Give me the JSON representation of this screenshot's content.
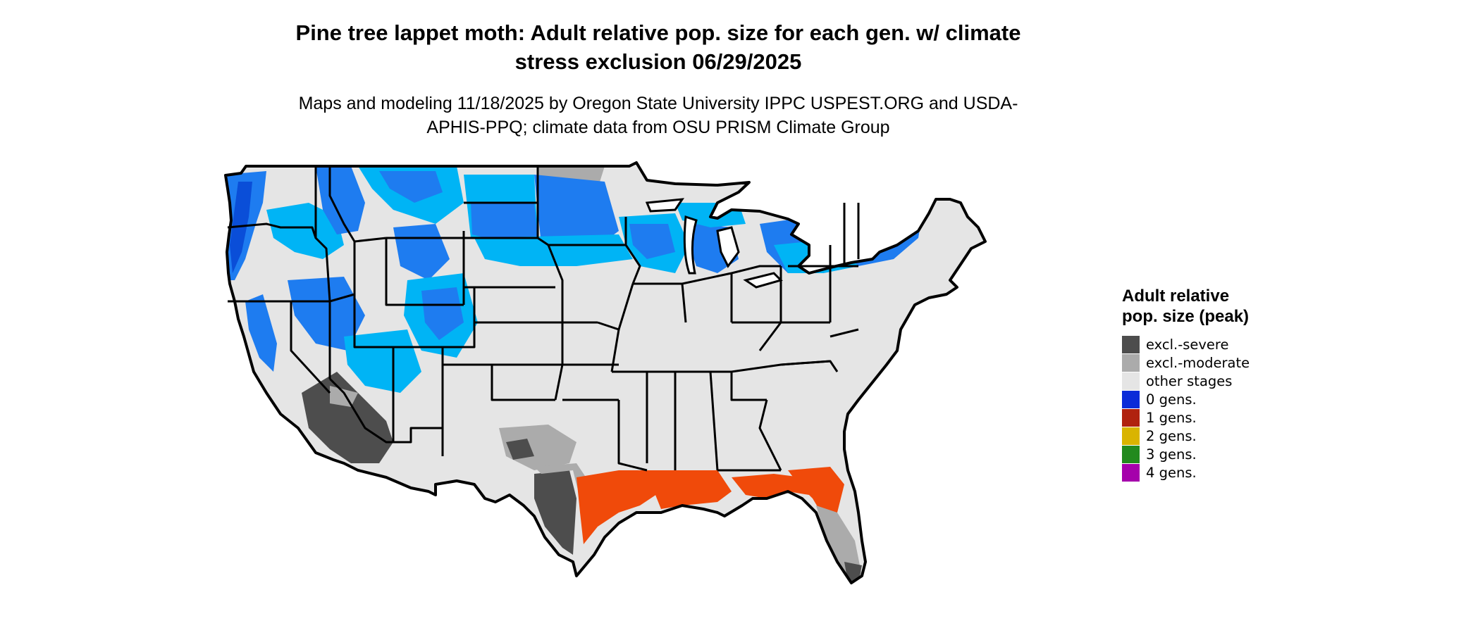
{
  "title": "Pine tree lappet moth: Adult relative pop. size for each gen. w/ climate stress exclusion 06/29/2025",
  "subtitle": "Maps and modeling 11/18/2025 by Oregon State University IPPC USPEST.ORG and USDA-APHIS-PPQ; climate data from OSU PRISM Climate Group",
  "legend": {
    "title": "Adult relative pop. size (peak)",
    "items": [
      {
        "label": "excl.-severe",
        "color": "#4d4d4d"
      },
      {
        "label": "excl.-moderate",
        "color": "#ababab"
      },
      {
        "label": "other stages",
        "color": "#e5e5e5"
      },
      {
        "label": "0 gens.",
        "color": "#0b2bd8"
      },
      {
        "label": "1 gens.",
        "color": "#b0220f"
      },
      {
        "label": "2 gens.",
        "color": "#d9b400"
      },
      {
        "label": "3 gens.",
        "color": "#228a1e"
      },
      {
        "label": "4 gens.",
        "color": "#a500ab"
      }
    ]
  },
  "map": {
    "region": "contiguous-united-states",
    "palette": {
      "border": "#000000",
      "other_stages": "#e5e5e5",
      "excl_moderate": "#ababab",
      "excl_severe": "#4d4d4d",
      "zero_gens_light": "#00b4f5",
      "zero_gens_mid": "#1e7cf0",
      "zero_gens_dark": "#0a4ed8",
      "one_gen": "#f04a0a",
      "water": "#ffffff"
    }
  }
}
